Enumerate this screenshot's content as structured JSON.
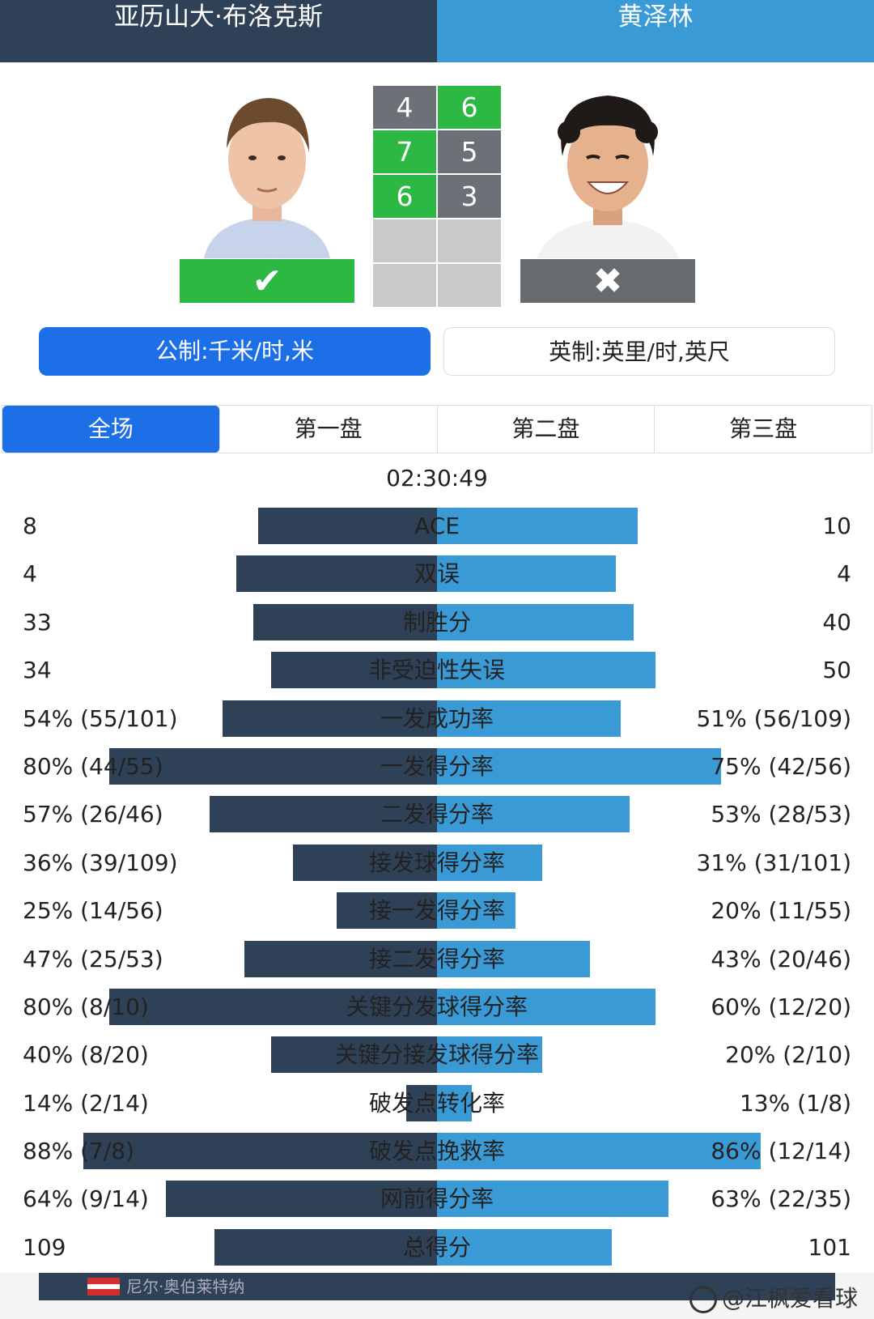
{
  "header": {
    "player1": "亚历山大·布洛克斯",
    "player2": "黄泽林"
  },
  "result": {
    "winner_icon": "check-icon",
    "loser_icon": "cross-icon"
  },
  "score": {
    "sets": [
      {
        "p1": "4",
        "p2": "6",
        "p1_won": false
      },
      {
        "p1": "7",
        "p2": "5",
        "p1_won": true
      },
      {
        "p1": "6",
        "p2": "3",
        "p1_won": true
      },
      {
        "p1": "",
        "p2": "",
        "p1_won": null
      },
      {
        "p1": "",
        "p2": "",
        "p1_won": null
      }
    ]
  },
  "units": {
    "metric": "公制:千米/时,米",
    "imperial": "英制:英里/时,英尺"
  },
  "tabs": [
    "全场",
    "第一盘",
    "第二盘",
    "第三盘"
  ],
  "duration": "02:30:49",
  "stats": [
    {
      "label": "ACE",
      "p1": "8",
      "p2": "10",
      "p1_share": 0.444,
      "p2_share": 0.556
    },
    {
      "label": "双误",
      "p1": "4",
      "p2": "4",
      "p1_share": 0.5,
      "p2_share": 0.5
    },
    {
      "label": "制胜分",
      "p1": "33",
      "p2": "40",
      "p1_share": 0.452,
      "p2_share": 0.548
    },
    {
      "label": "非受迫性失误",
      "p1": "34",
      "p2": "50",
      "p1_share": 0.405,
      "p2_share": 0.595
    },
    {
      "label": "一发成功率",
      "p1": "54% (55/101)",
      "p2": "51% (56/109)",
      "p1_share": 0.514,
      "p2_share": 0.486
    },
    {
      "label": "一发得分率",
      "p1": "80% (44/55)",
      "p2": "75% (42/56)",
      "p1_share": 0.516,
      "p2_share": 0.484
    },
    {
      "label": "二发得分率",
      "p1": "57% (26/46)",
      "p2": "53% (28/53)",
      "p1_share": 0.518,
      "p2_share": 0.482
    },
    {
      "label": "接发球得分率",
      "p1": "36% (39/109)",
      "p2": "31% (31/101)",
      "p1_share": 0.537,
      "p2_share": 0.463
    },
    {
      "label": "接一发得分率",
      "p1": "25% (14/56)",
      "p2": "20% (11/55)",
      "p1_share": 0.556,
      "p2_share": 0.444
    },
    {
      "label": "接二发得分率",
      "p1": "47% (25/53)",
      "p2": "43% (20/46)",
      "p1_share": 0.522,
      "p2_share": 0.478
    },
    {
      "label": "关键分发球得分率",
      "p1": "80% (8/10)",
      "p2": "60% (12/20)",
      "p1_share": 0.571,
      "p2_share": 0.429
    },
    {
      "label": "关键分接发球得分率",
      "p1": "40% (8/20)",
      "p2": "20% (2/10)",
      "p1_share": 0.667,
      "p2_share": 0.333
    },
    {
      "label": "破发点转化率",
      "p1": "14% (2/14)",
      "p2": "13% (1/8)",
      "p1_share": 0.519,
      "p2_share": 0.481
    },
    {
      "label": "破发点挽救率",
      "p1": "88% (7/8)",
      "p2": "86% (12/14)",
      "p1_share": 0.506,
      "p2_share": 0.494
    },
    {
      "label": "网前得分率",
      "p1": "64% (9/14)",
      "p2": "63% (22/35)",
      "p1_share": 0.504,
      "p2_share": 0.496
    },
    {
      "label": "总得分",
      "p1": "109",
      "p2": "101",
      "p1_share": 0.519,
      "p2_share": 0.481
    }
  ],
  "stat_bar_levels": [
    {
      "p1": 0.41,
      "p2": 0.46
    },
    {
      "p1": 0.46,
      "p2": 0.41
    },
    {
      "p1": 0.42,
      "p2": 0.45
    },
    {
      "p1": 0.38,
      "p2": 0.5
    },
    {
      "p1": 0.49,
      "p2": 0.42
    },
    {
      "p1": 0.75,
      "p2": 0.65
    },
    {
      "p1": 0.52,
      "p2": 0.44
    },
    {
      "p1": 0.33,
      "p2": 0.24
    },
    {
      "p1": 0.23,
      "p2": 0.18
    },
    {
      "p1": 0.44,
      "p2": 0.35
    },
    {
      "p1": 0.75,
      "p2": 0.5
    },
    {
      "p1": 0.38,
      "p2": 0.24
    },
    {
      "p1": 0.07,
      "p2": 0.08
    },
    {
      "p1": 0.81,
      "p2": 0.74
    },
    {
      "p1": 0.62,
      "p2": 0.53
    },
    {
      "p1": 0.51,
      "p2": 0.4
    }
  ],
  "footer": {
    "partial_name": "尼尔·奥伯莱特纳",
    "watermark": "@江枫爱看球",
    "watermark_icon": "weibo-icon"
  },
  "colors": {
    "p1": "#2f4157",
    "p2": "#3a9ad6",
    "win": "#2db843",
    "active": "#1c6fe6"
  }
}
